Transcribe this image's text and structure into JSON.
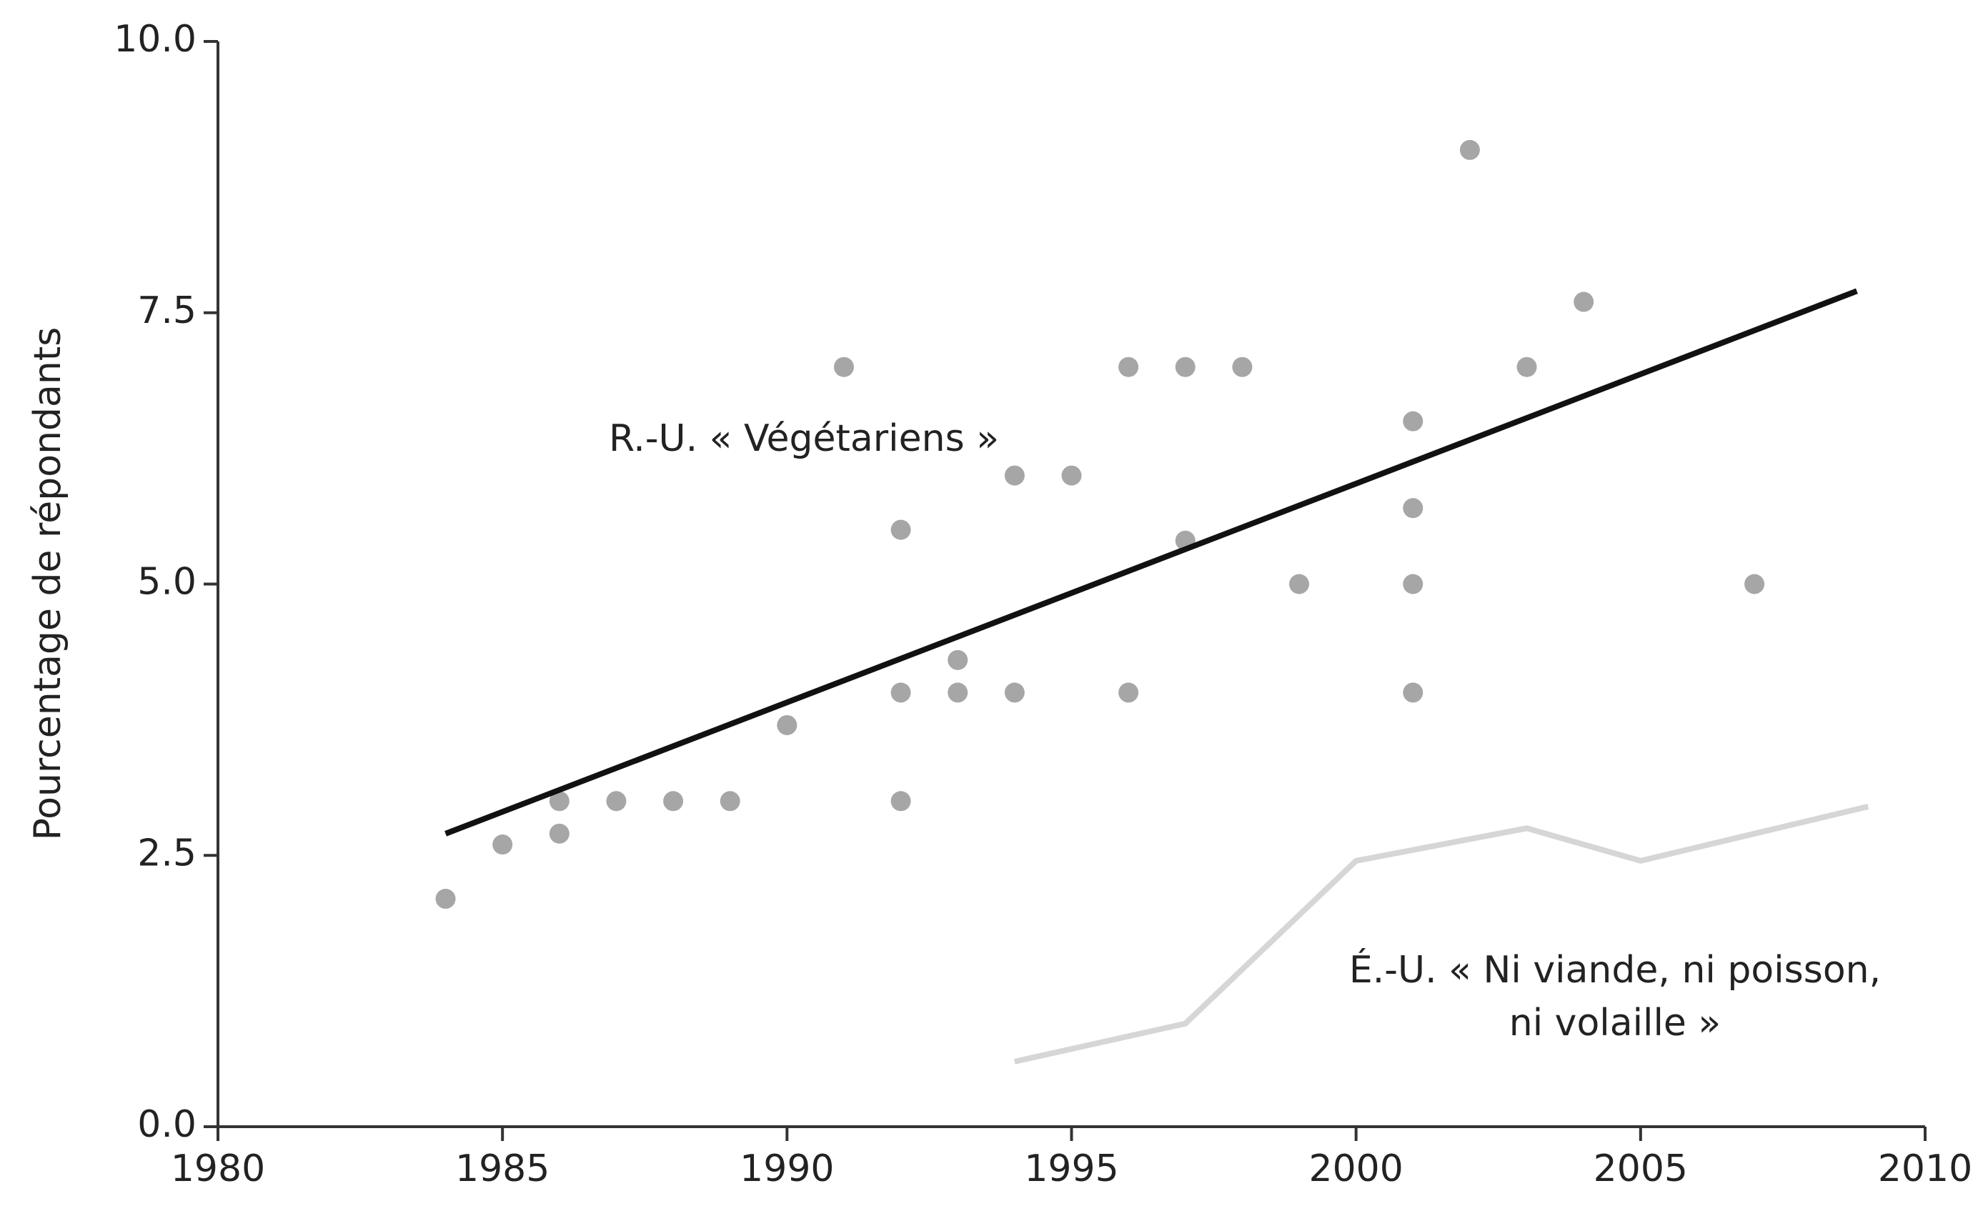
{
  "chart_data": {
    "type": "scatter",
    "y_label": "Pourcentage de répondants",
    "xlim": [
      1980,
      2010
    ],
    "ylim": [
      0,
      10
    ],
    "xticks": [
      1980,
      1985,
      1990,
      1995,
      2000,
      2005,
      2010
    ],
    "yticks": [
      {
        "value": 0,
        "label": "0.0"
      },
      2.5,
      {
        "value": 5,
        "label": "5.0"
      },
      7.5,
      {
        "value": 10,
        "label": "10.0"
      }
    ],
    "series": [
      {
        "type": "scatter",
        "color": "#a6a6a6",
        "x": [
          1984,
          1985,
          1986,
          1986,
          1987,
          1988,
          1989,
          1990,
          1991,
          1992,
          1992,
          1992,
          1993,
          1993,
          1994,
          1994,
          1995,
          1996,
          1996,
          1997,
          1997,
          1998,
          1999,
          2001,
          2001,
          2001,
          2001,
          2002,
          2003,
          2004,
          2007
        ],
        "values": [
          2.1,
          2.6,
          3.0,
          2.7,
          3.0,
          3.0,
          3.0,
          3.7,
          7.0,
          5.5,
          4.0,
          3.0,
          4.3,
          4.0,
          6.0,
          4.0,
          6.0,
          7.0,
          4.0,
          7.0,
          5.4,
          7.0,
          5.0,
          6.5,
          5.7,
          5.0,
          4.0,
          9.0,
          7.0,
          7.6,
          5.0
        ]
      },
      {
        "type": "line",
        "color": "#111111",
        "x": [
          1984,
          2008.8
        ],
        "values": [
          2.7,
          7.7
        ]
      },
      {
        "type": "line",
        "color": "#d6d6d6",
        "x": [
          1994,
          1997,
          2000,
          2003,
          2005,
          2009
        ],
        "values": [
          0.6,
          0.95,
          2.45,
          2.75,
          2.45,
          2.95
        ]
      }
    ],
    "annotations": [
      {
        "lines": [
          "R.-U. « Végétariens »"
        ]
      },
      {
        "lines": [
          "É.-U. « Ni viande, ni poisson,",
          "ni volaille »"
        ]
      }
    ]
  }
}
